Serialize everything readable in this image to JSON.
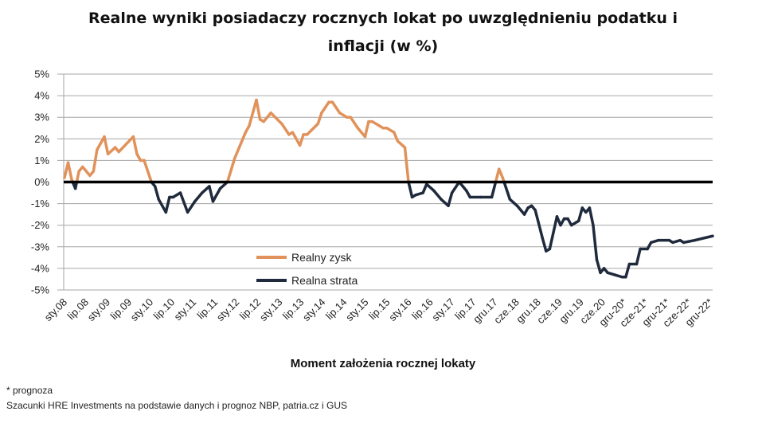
{
  "chart_data": {
    "type": "line",
    "title": "Realne wyniki posiadaczy rocznych lokat po uwzględnieniu podatku i inflacji (w %)",
    "title_lines": [
      "Realne wyniki posiadaczy rocznych lokat po uwzględnieniu podatku i",
      "inflacji (w %)"
    ],
    "xlabel": "Moment założenia rocznej lokaty",
    "ylabel": "",
    "ylim": [
      -5,
      5
    ],
    "yticks": [
      "5%",
      "4%",
      "3%",
      "2%",
      "1%",
      "0%",
      "-1%",
      "-2%",
      "-3%",
      "-4%",
      "-5%"
    ],
    "xticks": [
      "sty.08",
      "lip.08",
      "sty.09",
      "lip.09",
      "sty.10",
      "lip.10",
      "sty.11",
      "lip.11",
      "sty.12",
      "lip.12",
      "sty.13",
      "lip.13",
      "sty.14",
      "lip.14",
      "sty.15",
      "lip.15",
      "sty.16",
      "lip.16",
      "sty.17",
      "lip.17",
      "gru.17",
      "cze.18",
      "gru.18",
      "cze.19",
      "gru.19",
      "cze.20",
      "gru-20*",
      "cze-21*",
      "gru-21*",
      "cze-22*",
      "gru-22*"
    ],
    "xrange": [
      "2008-01",
      "2022-12"
    ],
    "grid": true,
    "legend_placement": "bottom-center",
    "colors": {
      "positive": "#e0925a",
      "negative": "#1f2a3c",
      "zero_line": "#000000",
      "grid": "#a6a6a6"
    },
    "series": [
      {
        "name": "Realny zysk",
        "rule": "value >= 0"
      },
      {
        "name": "Realna strata",
        "rule": "value < 0"
      }
    ],
    "points": [
      [
        "2008-01",
        0.2
      ],
      [
        "2008-02",
        0.9
      ],
      [
        "2008-03",
        0.1
      ],
      [
        "2008-04",
        -0.3
      ],
      [
        "2008-05",
        0.5
      ],
      [
        "2008-06",
        0.7
      ],
      [
        "2008-08",
        0.3
      ],
      [
        "2008-09",
        0.5
      ],
      [
        "2008-10",
        1.5
      ],
      [
        "2008-12",
        2.1
      ],
      [
        "2009-01",
        1.3
      ],
      [
        "2009-03",
        1.6
      ],
      [
        "2009-04",
        1.4
      ],
      [
        "2009-08",
        2.1
      ],
      [
        "2009-09",
        1.3
      ],
      [
        "2009-10",
        1.0
      ],
      [
        "2009-11",
        1.0
      ],
      [
        "2010-01",
        0.0
      ],
      [
        "2010-02",
        -0.2
      ],
      [
        "2010-03",
        -0.8
      ],
      [
        "2010-05",
        -1.4
      ],
      [
        "2010-06",
        -0.7
      ],
      [
        "2010-07",
        -0.7
      ],
      [
        "2010-09",
        -0.5
      ],
      [
        "2010-11",
        -1.4
      ],
      [
        "2011-01",
        -0.9
      ],
      [
        "2011-03",
        -0.5
      ],
      [
        "2011-05",
        -0.2
      ],
      [
        "2011-06",
        -0.9
      ],
      [
        "2011-08",
        -0.3
      ],
      [
        "2011-10",
        0.0
      ],
      [
        "2011-12",
        1.1
      ],
      [
        "2012-03",
        2.3
      ],
      [
        "2012-04",
        2.6
      ],
      [
        "2012-06",
        3.8
      ],
      [
        "2012-07",
        2.9
      ],
      [
        "2012-08",
        2.8
      ],
      [
        "2012-10",
        3.2
      ],
      [
        "2013-01",
        2.7
      ],
      [
        "2013-03",
        2.2
      ],
      [
        "2013-04",
        2.3
      ],
      [
        "2013-06",
        1.7
      ],
      [
        "2013-07",
        2.2
      ],
      [
        "2013-08",
        2.2
      ],
      [
        "2013-11",
        2.7
      ],
      [
        "2013-12",
        3.2
      ],
      [
        "2014-02",
        3.7
      ],
      [
        "2014-03",
        3.7
      ],
      [
        "2014-05",
        3.2
      ],
      [
        "2014-07",
        3.0
      ],
      [
        "2014-08",
        3.0
      ],
      [
        "2014-10",
        2.5
      ],
      [
        "2014-12",
        2.1
      ],
      [
        "2015-01",
        2.8
      ],
      [
        "2015-02",
        2.8
      ],
      [
        "2015-04",
        2.6
      ],
      [
        "2015-05",
        2.5
      ],
      [
        "2015-06",
        2.5
      ],
      [
        "2015-08",
        2.3
      ],
      [
        "2015-09",
        1.9
      ],
      [
        "2015-11",
        1.6
      ],
      [
        "2015-12",
        0.0
      ],
      [
        "2016-01",
        -0.7
      ],
      [
        "2016-02",
        -0.6
      ],
      [
        "2016-04",
        -0.5
      ],
      [
        "2016-05",
        -0.1
      ],
      [
        "2016-07",
        -0.4
      ],
      [
        "2016-09",
        -0.8
      ],
      [
        "2016-11",
        -1.1
      ],
      [
        "2016-12",
        -0.5
      ],
      [
        "2017-02",
        0.0
      ],
      [
        "2017-03",
        -0.2
      ],
      [
        "2017-04",
        -0.4
      ],
      [
        "2017-05",
        -0.7
      ],
      [
        "2017-08",
        -0.7
      ],
      [
        "2017-11",
        -0.7
      ],
      [
        "2018-01",
        0.6
      ],
      [
        "2018-02",
        0.2
      ],
      [
        "2018-04",
        -0.8
      ],
      [
        "2018-06",
        -1.1
      ],
      [
        "2018-08",
        -1.5
      ],
      [
        "2018-09",
        -1.2
      ],
      [
        "2018-10",
        -1.1
      ],
      [
        "2018-11",
        -1.3
      ],
      [
        "2019-01",
        -2.6
      ],
      [
        "2019-02",
        -3.2
      ],
      [
        "2019-03",
        -3.1
      ],
      [
        "2019-05",
        -1.6
      ],
      [
        "2019-06",
        -2.0
      ],
      [
        "2019-07",
        -1.7
      ],
      [
        "2019-08",
        -1.7
      ],
      [
        "2019-09",
        -2.0
      ],
      [
        "2019-11",
        -1.8
      ],
      [
        "2019-12",
        -1.2
      ],
      [
        "2020-01",
        -1.4
      ],
      [
        "2020-02",
        -1.2
      ],
      [
        "2020-03",
        -2.0
      ],
      [
        "2020-04",
        -3.6
      ],
      [
        "2020-05",
        -4.2
      ],
      [
        "2020-06",
        -4.0
      ],
      [
        "2020-07",
        -4.2
      ],
      [
        "2020-09",
        -4.3
      ],
      [
        "2020-11",
        -4.4
      ],
      [
        "2020-12",
        -4.4
      ],
      [
        "2021-01",
        -3.8
      ],
      [
        "2021-03",
        -3.8
      ],
      [
        "2021-04",
        -3.1
      ],
      [
        "2021-06",
        -3.1
      ],
      [
        "2021-07",
        -2.8
      ],
      [
        "2021-09",
        -2.7
      ],
      [
        "2021-12",
        -2.7
      ],
      [
        "2022-01",
        -2.8
      ],
      [
        "2022-03",
        -2.7
      ],
      [
        "2022-04",
        -2.8
      ],
      [
        "2022-07",
        -2.7
      ],
      [
        "2022-12",
        -2.5
      ]
    ]
  },
  "footnotes": {
    "forecast": "* prognoza",
    "source": "Szacunki HRE Investments na podstawie danych i prognoz NBP,  patria.cz  i GUS"
  }
}
